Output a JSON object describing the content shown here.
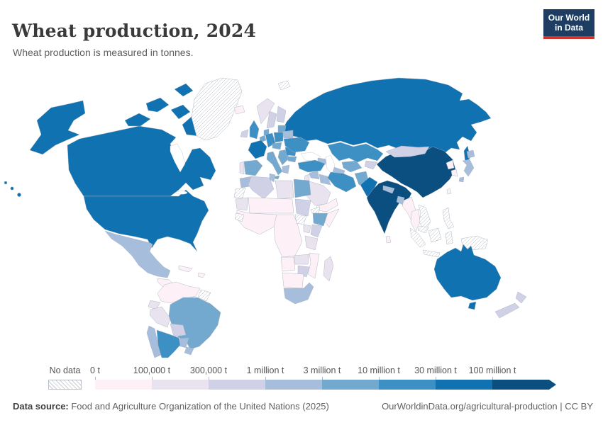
{
  "header": {
    "title": "Wheat production, 2024",
    "subtitle": "Wheat production is measured in tonnes.",
    "logo": {
      "line1": "Our World",
      "line2": "in Data"
    }
  },
  "colors": {
    "logo_bg": "#1d3d63",
    "logo_accent": "#d0342c",
    "border": "#a9b2bd",
    "no_data_hatch": "#c9ced4"
  },
  "legend": {
    "no_data_label": "No data"
  },
  "footer": {
    "source_label": "Data source:",
    "source_text": " Food and Agriculture Organization of the United Nations (2025)",
    "right_text": "OurWorldinData.org/agricultural-production | CC BY"
  },
  "chart_data": {
    "type": "heatmap",
    "map_type": "world-choropleth",
    "title": "Wheat production, 2024",
    "unit": "tonnes",
    "legend_position": "bottom",
    "no_data_label": "No data",
    "bin_edges": [
      "0 t",
      "100,000 t",
      "300,000 t",
      "1 million t",
      "3 million t",
      "10 million t",
      "30 million t",
      "100 million t"
    ],
    "bin_colors": [
      "#fdf0f6",
      "#e9e3f0",
      "#d0d1e6",
      "#a6bddb",
      "#74a9cf",
      "#3c90c3",
      "#1172b1",
      "#0a4f80"
    ],
    "regions": {
      "canada": 6,
      "usa": 6,
      "greenland": "no-data",
      "mexico": 3,
      "central-america": 0,
      "cuba": 0,
      "hispaniola": 0,
      "colombia-venezuela": 0,
      "guyanas": "no-data",
      "ecuador": 1,
      "peru": 1,
      "brazil": 4,
      "bolivia": 2,
      "paraguay": 3,
      "uruguay": 3,
      "chile": 3,
      "argentina": 5,
      "iceland": 0,
      "ireland": 2,
      "uk": 5,
      "norway": 1,
      "sweden": 2,
      "finland": 2,
      "denmark": 4,
      "baltics": 4,
      "portugal": 1,
      "spain": 4,
      "france": 6,
      "belgium-netherlands": 4,
      "germany": 5,
      "poland": 5,
      "czech-austria-hungary": 4,
      "italy": 4,
      "balkans": 4,
      "greece": 3,
      "romania": 5,
      "bulgaria": 4,
      "ukraine": 5,
      "belarus": 3,
      "svalbard": "no-data",
      "russia": 6,
      "kazakhstan": 5,
      "uzbekistan": 4,
      "turkmenistan": 3,
      "kyrgyzstan-tajikistan": 2,
      "caucasus": 3,
      "turkey": 5,
      "syria": 3,
      "jordan-israel": 1,
      "iraq": 3,
      "iran": 5,
      "afghanistan": 4,
      "pakistan": 6,
      "saudi-arabia": 1,
      "yemen-oman": 0,
      "india": 7,
      "nepal": 3,
      "bangladesh": 3,
      "sri-lanka": 0,
      "myanmar": 0,
      "thailand": 0,
      "vietnam-laos": "no-data",
      "malaysia": "no-data",
      "china": 7,
      "mongolia": 2,
      "north-korea": 0,
      "south-korea": 0,
      "japan": 3,
      "taiwan": 0,
      "morocco": 3,
      "western-sahara": "no-data",
      "algeria": 2,
      "tunisia": 3,
      "libya": 1,
      "egypt": 4,
      "mauritania": 1,
      "sahel": 0,
      "sudan": 2,
      "eritrea": "no-data",
      "ethiopia": 4,
      "somalia": 0,
      "south-sudan": "no-data",
      "west-africa": 0,
      "guinea": "no-data",
      "central-africa": 0,
      "uganda": 1,
      "kenya": 2,
      "tanzania": 1,
      "zambia": 1,
      "mozambique": 0,
      "zimbabwe": 2,
      "angola": 0,
      "namibia-botswana": 0,
      "south-africa": 3,
      "madagascar": 1,
      "indonesia": "no-data",
      "new-guinea": "no-data",
      "philippines": "no-data",
      "australia": 6,
      "new-zealand": 2
    }
  }
}
